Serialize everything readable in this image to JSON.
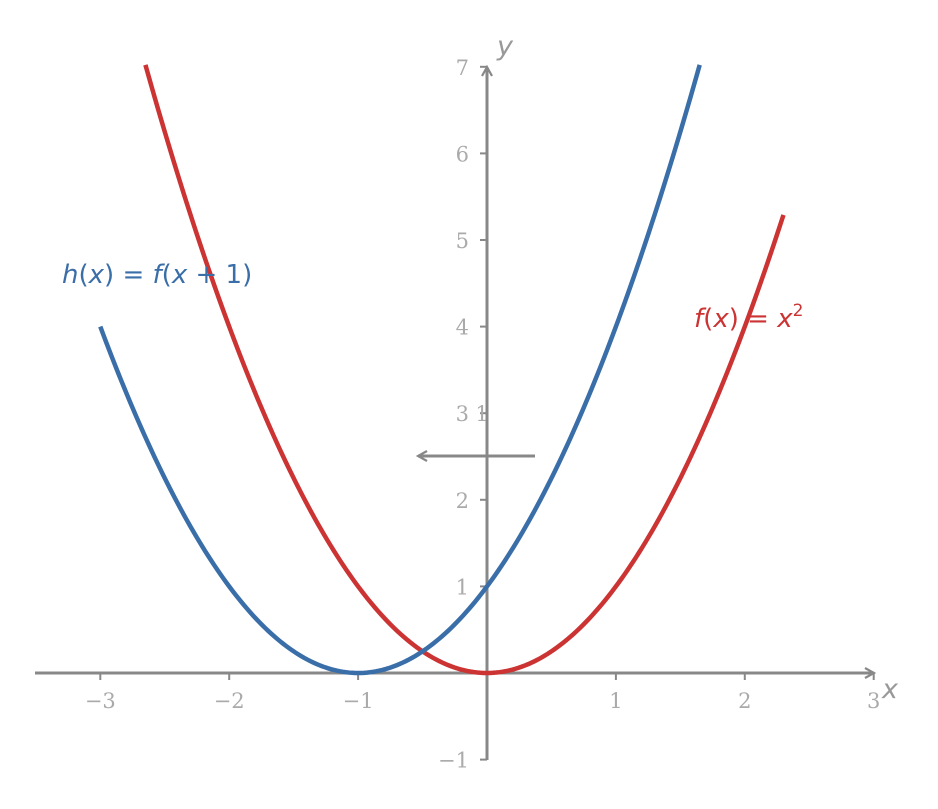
{
  "chart_data": {
    "type": "line",
    "xlabel": "x",
    "ylabel": "y",
    "xlim": [
      -3.5,
      3
    ],
    "ylim": [
      -1,
      7
    ],
    "x_ticks": [
      -3,
      -2,
      -1,
      1,
      2,
      3
    ],
    "y_ticks": [
      -1,
      1,
      2,
      3,
      4,
      5,
      6,
      7
    ],
    "x_tick_labels": [
      "−3",
      "−2",
      "−1",
      "1",
      "2",
      "3"
    ],
    "y_tick_labels": [
      "−1",
      "1",
      "2",
      "3",
      "4",
      "5",
      "6",
      "7"
    ],
    "grid": false,
    "series": [
      {
        "name": "f(x) = x²",
        "color": "#cc3333",
        "x_range": [
          -2.65,
          2.3
        ],
        "x": [
          -2.65,
          -2.5,
          -2,
          -1.5,
          -1,
          -0.5,
          0,
          0.5,
          1,
          1.5,
          2,
          2.3
        ],
        "y": [
          7.02,
          6.25,
          4,
          2.25,
          1,
          0.25,
          0,
          0.25,
          1,
          2.25,
          4,
          5.29
        ]
      },
      {
        "name": "h(x) = f(x + 1)",
        "color": "#3a6ea8",
        "x_range": [
          -3,
          1.65
        ],
        "x": [
          -3,
          -2.5,
          -2,
          -1.5,
          -1,
          -0.5,
          0,
          0.5,
          1,
          1.5,
          1.65
        ],
        "y": [
          4,
          2.25,
          1,
          0.25,
          0,
          0.25,
          1,
          2.25,
          4,
          6.25,
          7.02
        ]
      }
    ],
    "annotations": {
      "shift_label": "1",
      "shift_direction": "left",
      "shift_color": "#888888"
    },
    "labels": {
      "f": {
        "name": "f",
        "var": "x",
        "eq": " = ",
        "base": "x",
        "exp": "2"
      },
      "h": {
        "name": "h",
        "var": "x",
        "eq": " = ",
        "rhs_name": "f",
        "rhs_var": "x",
        "rhs_add": " + 1"
      }
    }
  }
}
